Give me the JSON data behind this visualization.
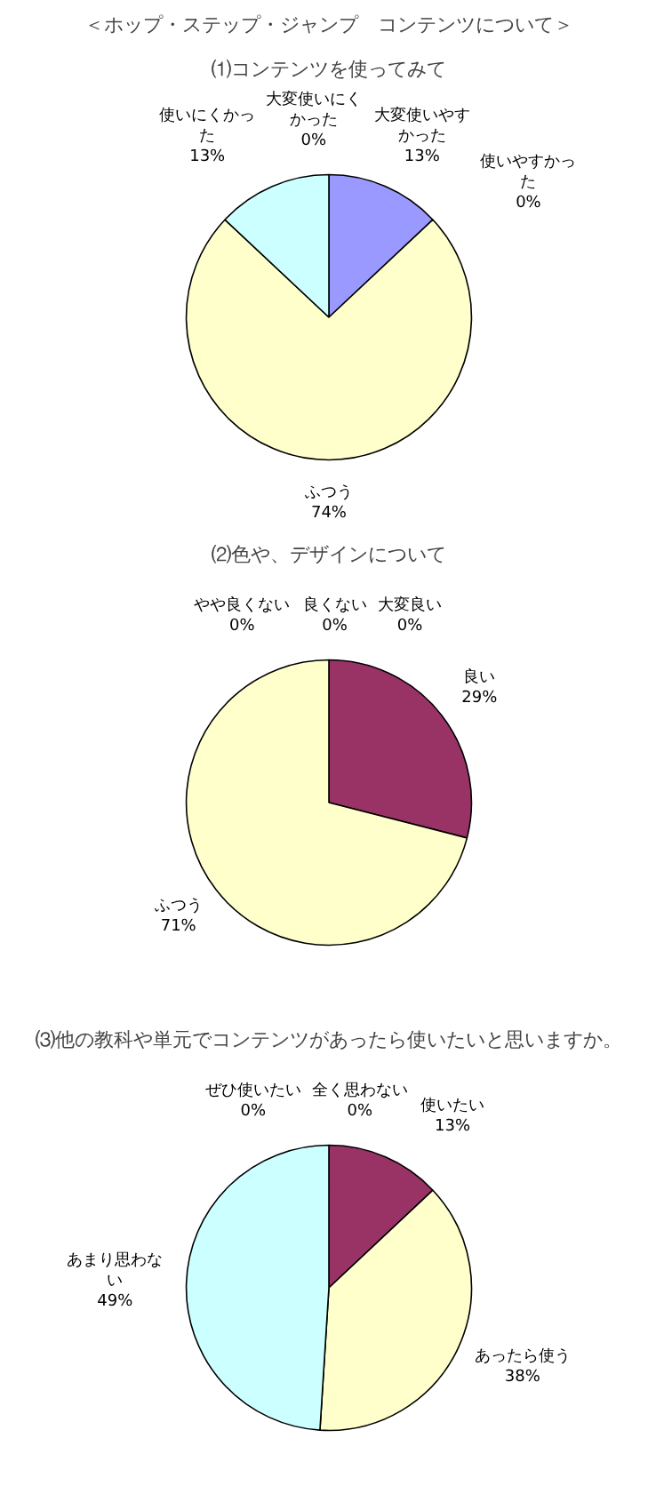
{
  "chart_data": [
    {
      "type": "pie",
      "title": "＜ホップ・ステップ・ジャンプ　コンテンツについて＞",
      "subtitle": "⑴コンテンツを使ってみて",
      "categories": [
        "大変使いやすかった",
        "使いやすかった",
        "ふつう",
        "使いにくかった",
        "大変使いにくかった"
      ],
      "values": [
        13,
        0,
        74,
        13,
        0
      ],
      "colors": [
        "#9999ff",
        "#993366",
        "#ffffcc",
        "#ccffff",
        "#660066"
      ],
      "value_labels": [
        "13%",
        "0%",
        "74%",
        "13%",
        "0%"
      ],
      "legend": false
    },
    {
      "type": "pie",
      "title": "⑵色や、デザインについて",
      "categories": [
        "大変良い",
        "良い",
        "ふつう",
        "やや良くない",
        "良くない"
      ],
      "values": [
        0,
        29,
        71,
        0,
        0
      ],
      "colors": [
        "#9999ff",
        "#993366",
        "#ffffcc",
        "#ccffff",
        "#660066"
      ],
      "value_labels": [
        "0%",
        "29%",
        "71%",
        "0%",
        "0%"
      ],
      "legend": false
    },
    {
      "type": "pie",
      "title": "⑶他の教科や単元でコンテンツがあったら使いたいと思いますか。",
      "categories": [
        "ぜひ使いたい",
        "使いたい",
        "あったら使う",
        "あまり思わない",
        "全く思わない"
      ],
      "values": [
        0,
        13,
        38,
        49,
        0
      ],
      "colors": [
        "#9999ff",
        "#993366",
        "#ffffcc",
        "#ccffff",
        "#660066"
      ],
      "value_labels": [
        "0%",
        "13%",
        "38%",
        "49%",
        "0%"
      ],
      "legend": false
    }
  ]
}
